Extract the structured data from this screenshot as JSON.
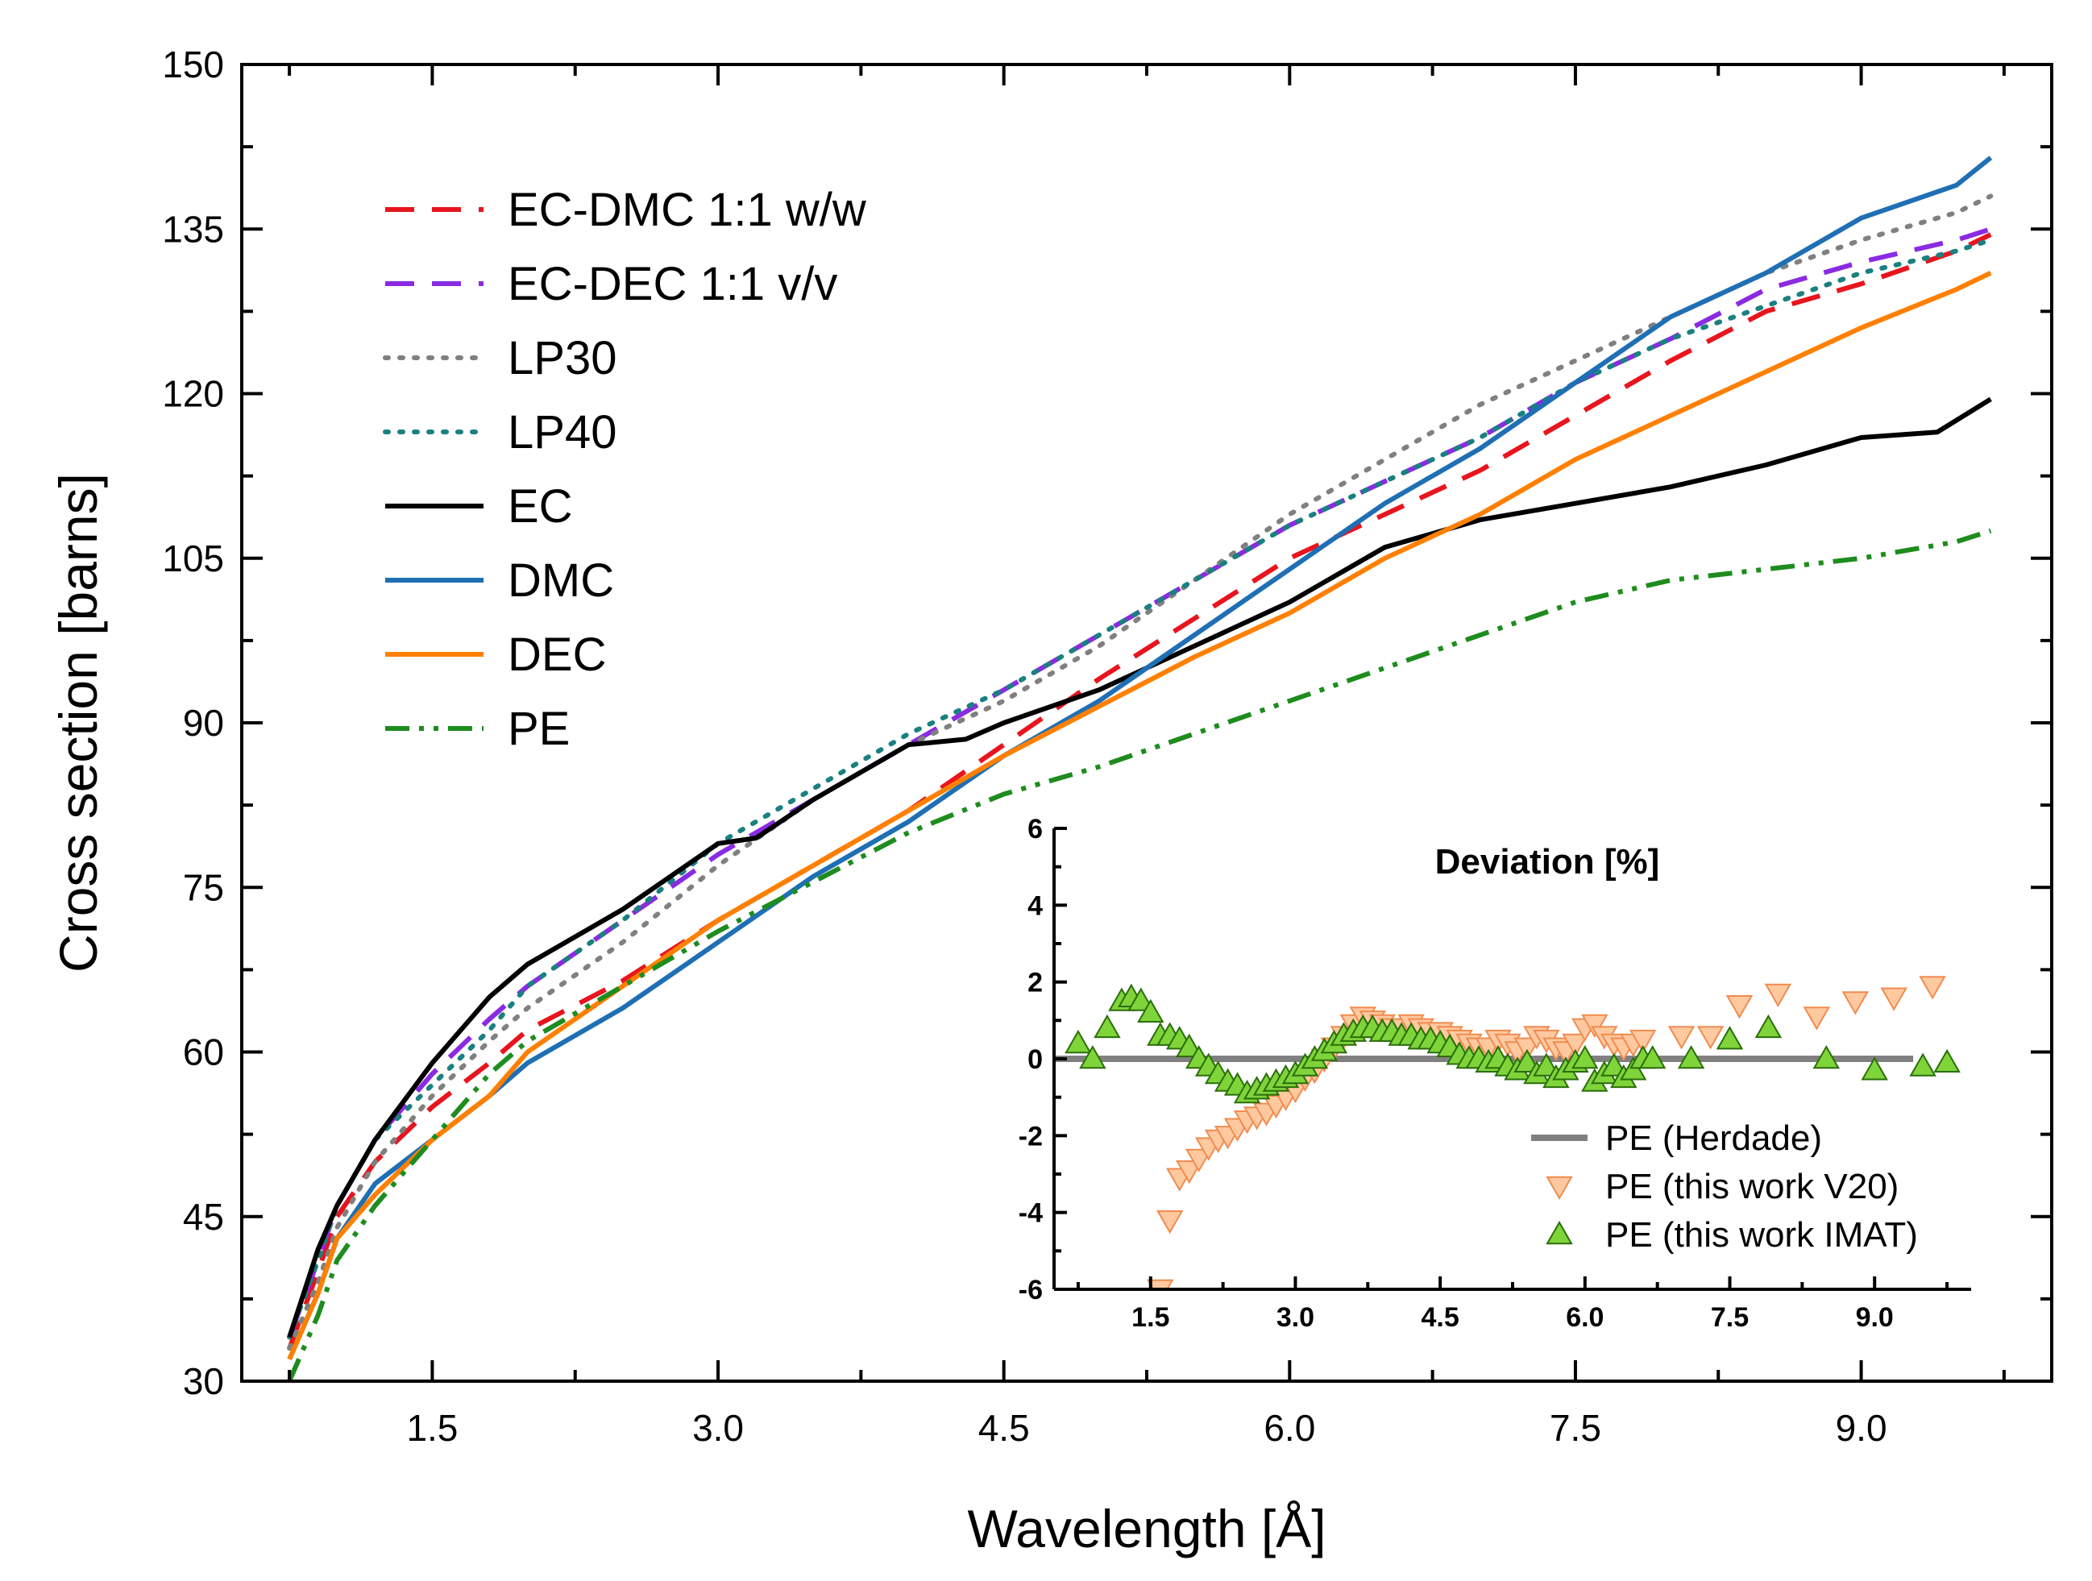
{
  "chart_data": {
    "type": "line",
    "main": {
      "xlabel": "Wavelength [Å]",
      "ylabel": "Cross section [barns]",
      "xlim": [
        0.5,
        10.0
      ],
      "ylim": [
        30,
        150
      ],
      "xticks": [
        "1.5",
        "3.0",
        "4.5",
        "6.0",
        "7.5",
        "9.0"
      ],
      "yticks": [
        "30",
        "45",
        "60",
        "75",
        "90",
        "105",
        "120",
        "135",
        "150"
      ],
      "legend_position": "top-left",
      "series": [
        {
          "name": "EC-DMC 1:1 w/w",
          "color": "#e8141e",
          "style": "dashed",
          "x": [
            0.75,
            0.9,
            1.0,
            1.2,
            1.5,
            1.8,
            2.0,
            2.5,
            3.0,
            3.5,
            4.0,
            4.5,
            5.0,
            5.5,
            6.0,
            6.5,
            7.0,
            7.5,
            8.0,
            8.5,
            9.0,
            9.5,
            9.68
          ],
          "y": [
            33,
            40,
            45,
            50,
            55,
            59,
            62,
            66.5,
            72,
            77,
            82,
            88,
            94,
            99.5,
            105,
            109,
            113,
            118,
            123,
            127.5,
            130,
            133,
            134.5
          ]
        },
        {
          "name": "EC-DEC 1:1 v/v",
          "color": "#8a2be2",
          "style": "dashed",
          "x": [
            0.75,
            0.9,
            1.0,
            1.2,
            1.5,
            1.8,
            2.0,
            2.5,
            3.0,
            3.5,
            4.0,
            4.5,
            5.0,
            5.5,
            6.0,
            6.5,
            7.0,
            7.5,
            8.0,
            8.5,
            9.0,
            9.5,
            9.68
          ],
          "y": [
            34,
            41,
            46,
            52,
            58,
            63,
            66,
            72,
            78,
            83,
            88,
            93,
            98,
            103,
            108,
            112,
            116,
            121,
            125,
            129.5,
            132,
            134,
            135
          ]
        },
        {
          "name": "LP30",
          "color": "#808080",
          "style": "dotted",
          "x": [
            0.75,
            0.9,
            1.0,
            1.2,
            1.5,
            1.8,
            2.0,
            2.5,
            3.0,
            3.5,
            4.0,
            4.5,
            5.0,
            5.5,
            6.0,
            6.5,
            7.0,
            7.5,
            8.0,
            8.5,
            9.0,
            9.5,
            9.68
          ],
          "y": [
            33,
            39,
            44,
            50,
            56,
            61,
            64,
            70,
            77,
            83,
            88,
            92,
            97,
            103,
            109,
            114,
            119,
            123,
            127,
            131,
            134,
            136.5,
            138
          ]
        },
        {
          "name": "LP40",
          "color": "#1a8080",
          "style": "dotted",
          "x": [
            0.75,
            0.9,
            1.0,
            1.2,
            1.5,
            1.8,
            2.0,
            2.5,
            3.0,
            3.5,
            4.0,
            4.5,
            5.0,
            5.5,
            6.0,
            6.5,
            7.0,
            7.5,
            8.0,
            8.5,
            9.0,
            9.5,
            9.68
          ],
          "y": [
            34,
            41,
            46,
            52,
            57,
            62,
            66,
            72,
            79,
            84,
            89,
            93,
            98,
            103,
            108,
            112,
            116,
            121,
            125,
            128,
            131,
            133,
            134
          ]
        },
        {
          "name": "EC",
          "color": "#000000",
          "style": "solid",
          "x": [
            0.75,
            0.9,
            1.0,
            1.2,
            1.5,
            1.8,
            2.0,
            2.5,
            3.0,
            3.2,
            3.5,
            4.0,
            4.3,
            4.5,
            5.0,
            5.5,
            6.0,
            6.5,
            7.0,
            7.5,
            8.0,
            8.5,
            9.0,
            9.4,
            9.68
          ],
          "y": [
            34,
            42,
            46,
            52,
            59,
            65,
            68,
            73,
            79,
            79.5,
            83,
            88,
            88.5,
            90,
            93,
            97,
            101,
            106,
            108.5,
            110,
            111.5,
            113.5,
            116,
            116.5,
            119.5
          ]
        },
        {
          "name": "DMC",
          "color": "#1f6fb4",
          "style": "solid",
          "x": [
            0.75,
            0.9,
            1.0,
            1.2,
            1.5,
            1.8,
            2.0,
            2.5,
            3.0,
            3.5,
            4.0,
            4.5,
            5.0,
            5.5,
            6.0,
            6.5,
            7.0,
            7.5,
            8.0,
            8.5,
            9.0,
            9.5,
            9.68
          ],
          "y": [
            32,
            38,
            43,
            48,
            52,
            56,
            59,
            64,
            70,
            76,
            81,
            87,
            92,
            98,
            104,
            110,
            115,
            121,
            127,
            131,
            136,
            139,
            141.5
          ]
        },
        {
          "name": "DEC",
          "color": "#ff8000",
          "style": "solid",
          "x": [
            0.75,
            0.9,
            1.0,
            1.2,
            1.5,
            1.8,
            2.0,
            2.5,
            3.0,
            3.5,
            4.0,
            4.5,
            5.0,
            5.5,
            6.0,
            6.5,
            7.0,
            7.5,
            8.0,
            8.5,
            9.0,
            9.5,
            9.68
          ],
          "y": [
            32,
            38,
            43,
            47,
            52,
            56,
            60,
            66,
            72,
            77,
            82,
            87,
            91.5,
            96,
            100,
            105,
            109,
            114,
            118,
            122,
            126,
            129.5,
            131
          ]
        },
        {
          "name": "PE",
          "color": "#1e8c1e",
          "style": "dash-dot-dot",
          "x": [
            0.75,
            0.9,
            1.0,
            1.2,
            1.5,
            1.8,
            2.0,
            2.5,
            3.0,
            3.5,
            4.0,
            4.5,
            5.0,
            5.5,
            6.0,
            6.5,
            7.0,
            7.5,
            8.0,
            8.5,
            9.0,
            9.5,
            9.68
          ],
          "y": [
            30,
            36,
            41,
            46,
            52,
            58,
            61,
            66,
            71,
            75.5,
            80,
            83.5,
            86,
            89,
            92,
            95,
            98,
            101,
            103,
            104,
            105,
            106.5,
            107.5
          ]
        }
      ]
    },
    "inset": {
      "title": "Deviation [%]",
      "xlim": [
        0.5,
        10.0
      ],
      "ylim": [
        -6,
        6
      ],
      "xticks": [
        "1.5",
        "3.0",
        "4.5",
        "6.0",
        "7.5",
        "9.0"
      ],
      "yticks": [
        "6",
        "4",
        "2",
        "0",
        "-2",
        "-4",
        "-6"
      ],
      "legend_position": "bottom-right",
      "series": [
        {
          "name": "PE (Herdade)",
          "type": "line",
          "color": "#808080",
          "x": [
            0.5,
            9.4
          ],
          "y": [
            0,
            0
          ]
        },
        {
          "name": "PE (this work V20)",
          "type": "scatter",
          "marker": "triangle-down",
          "color": "#ffc9a0",
          "edge": "#f08c4f",
          "x": [
            1.6,
            1.7,
            1.8,
            1.9,
            2.0,
            2.1,
            2.2,
            2.3,
            2.4,
            2.5,
            2.6,
            2.7,
            2.8,
            2.9,
            3.0,
            3.1,
            3.2,
            3.3,
            3.4,
            3.5,
            3.6,
            3.7,
            3.8,
            3.9,
            4.0,
            4.1,
            4.2,
            4.3,
            4.4,
            4.5,
            4.6,
            4.7,
            4.8,
            4.9,
            5.0,
            5.1,
            5.2,
            5.3,
            5.4,
            5.5,
            5.6,
            5.7,
            5.8,
            5.9,
            6.0,
            6.1,
            6.2,
            6.3,
            6.4,
            6.5,
            6.6,
            7.0,
            7.3,
            7.6,
            8.0,
            8.4,
            8.8,
            9.2,
            9.6
          ],
          "y": [
            -6,
            -4.2,
            -3.1,
            -2.9,
            -2.6,
            -2.3,
            -2.1,
            -2.0,
            -1.8,
            -1.6,
            -1.5,
            -1.4,
            -1.2,
            -1.0,
            -0.8,
            -0.5,
            -0.3,
            0.0,
            0.3,
            0.6,
            0.9,
            1.1,
            1.0,
            0.9,
            0.8,
            0.8,
            0.9,
            0.8,
            0.7,
            0.7,
            0.6,
            0.5,
            0.4,
            0.3,
            0.3,
            0.5,
            0.4,
            0.2,
            0.3,
            0.6,
            0.5,
            0.3,
            0.2,
            0.4,
            0.8,
            0.9,
            0.6,
            0.4,
            0.3,
            0.4,
            0.5,
            0.6,
            0.6,
            1.4,
            1.7,
            1.1,
            1.5,
            1.6,
            1.9
          ]
        },
        {
          "name": "PE (this work IMAT)",
          "type": "scatter",
          "marker": "triangle-up",
          "color": "#7fd43a",
          "edge": "#2a6e0a",
          "x": [
            0.75,
            0.9,
            1.05,
            1.2,
            1.3,
            1.4,
            1.5,
            1.6,
            1.7,
            1.8,
            1.9,
            2.0,
            2.1,
            2.2,
            2.3,
            2.4,
            2.5,
            2.6,
            2.7,
            2.8,
            2.9,
            3.0,
            3.1,
            3.2,
            3.3,
            3.4,
            3.5,
            3.6,
            3.7,
            3.8,
            3.9,
            4.0,
            4.1,
            4.2,
            4.3,
            4.4,
            4.5,
            4.6,
            4.7,
            4.8,
            4.9,
            5.0,
            5.1,
            5.2,
            5.3,
            5.4,
            5.5,
            5.6,
            5.7,
            5.8,
            5.9,
            6.0,
            6.1,
            6.2,
            6.3,
            6.4,
            6.5,
            6.6,
            6.7,
            7.1,
            7.5,
            7.9,
            8.5,
            9.0,
            9.5,
            9.75
          ],
          "y": [
            0.4,
            0.0,
            0.8,
            1.5,
            1.6,
            1.5,
            1.2,
            0.6,
            0.6,
            0.5,
            0.3,
            0.0,
            -0.2,
            -0.4,
            -0.6,
            -0.7,
            -0.9,
            -0.8,
            -0.7,
            -0.6,
            -0.5,
            -0.4,
            -0.2,
            0.0,
            0.2,
            0.4,
            0.6,
            0.7,
            0.8,
            0.8,
            0.7,
            0.7,
            0.6,
            0.6,
            0.5,
            0.5,
            0.4,
            0.3,
            0.1,
            0.0,
            0.0,
            -0.1,
            0.0,
            -0.2,
            -0.3,
            -0.1,
            -0.4,
            -0.2,
            -0.5,
            -0.3,
            -0.1,
            0.0,
            -0.6,
            -0.4,
            -0.2,
            -0.5,
            -0.3,
            0.0,
            0.0,
            0.0,
            0.5,
            0.8,
            0.0,
            -0.3,
            -0.2,
            -0.1
          ]
        }
      ]
    }
  }
}
